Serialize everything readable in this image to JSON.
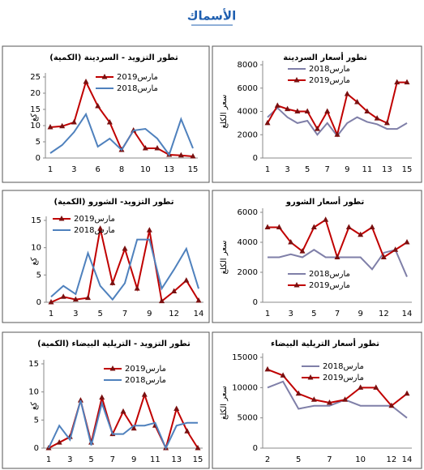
{
  "title": "الأسماك",
  "chart_data": [
    {
      "type": "line",
      "title": "تطور التزويد - السردينة (الكمية)",
      "ylabel": "كغ",
      "categories": [
        "1",
        null,
        "3",
        null,
        "6",
        null,
        "8",
        null,
        "10",
        null,
        "13",
        null,
        "15"
      ],
      "ylim": [
        0,
        25
      ],
      "yticks": [
        0,
        5,
        10,
        15,
        20,
        25
      ],
      "series": [
        {
          "name": "مارس2019",
          "color": "#c00000",
          "marker": "triangle",
          "values": [
            9.5,
            9.8,
            11,
            23.5,
            16,
            11,
            2.5,
            8.5,
            3,
            3,
            1,
            0.8,
            0.5
          ]
        },
        {
          "name": "مارس2018",
          "color": "#4f81bd",
          "values": [
            1.5,
            4,
            8,
            13.5,
            3.5,
            6,
            2.5,
            8.5,
            9,
            6,
            1,
            12,
            3
          ]
        }
      ]
    },
    {
      "type": "line",
      "title": "تطور أسعار السردينة",
      "ylabel": "سعر الكلغ",
      "categories": [
        "1",
        null,
        "3",
        null,
        "5",
        null,
        "7",
        null,
        "9",
        null,
        "11",
        null,
        "13",
        null,
        "15"
      ],
      "ylim": [
        0,
        8000
      ],
      "yticks": [
        0,
        2000,
        4000,
        6000,
        8000
      ],
      "series": [
        {
          "name": "مارس2018",
          "color": "#7f7fa8",
          "values": [
            3500,
            4300,
            3500,
            3000,
            3200,
            2000,
            3000,
            1900,
            3000,
            3500,
            3100,
            2900,
            2500,
            2500,
            3000
          ]
        },
        {
          "name": "مارس2019",
          "color": "#c00000",
          "marker": "triangle",
          "values": [
            3000,
            4500,
            4200,
            4000,
            4000,
            2500,
            4000,
            2000,
            5500,
            4800,
            4000,
            3400,
            3000,
            6500,
            6500
          ]
        }
      ]
    },
    {
      "type": "line",
      "title": "تطور التزويد- الشورو (الكمية)",
      "ylabel": "كغ",
      "categories": [
        "1",
        null,
        "3",
        null,
        "5",
        null,
        "7",
        null,
        "9",
        null,
        "12",
        null,
        "14"
      ],
      "ylim": [
        0,
        15
      ],
      "yticks": [
        0,
        5,
        10,
        15
      ],
      "series": [
        {
          "name": "مارس2019",
          "color": "#c00000",
          "marker": "triangle",
          "values": [
            0,
            1,
            0.5,
            0.8,
            13.5,
            3.5,
            9.8,
            2.5,
            13.2,
            0.2,
            2,
            4,
            0.3
          ]
        },
        {
          "name": "مارس2018",
          "color": "#4f81bd",
          "values": [
            1,
            3,
            1.5,
            9,
            3,
            0.5,
            3.5,
            11.5,
            11.5,
            2.5,
            6,
            9.8,
            2.5
          ]
        }
      ]
    },
    {
      "type": "line",
      "title": "تطور أسعار الشورو",
      "ylabel": "سعر الكلغ",
      "categories": [
        "1",
        null,
        "3",
        null,
        "5",
        null,
        "7",
        null,
        "9",
        null,
        "12",
        null,
        "14"
      ],
      "ylim": [
        0,
        6000
      ],
      "yticks": [
        0,
        2000,
        4000,
        6000
      ],
      "series": [
        {
          "name": "مارس2018",
          "color": "#7f7fa8",
          "values": [
            3000,
            3000,
            3200,
            3000,
            3500,
            3000,
            3000,
            3000,
            3000,
            2200,
            3300,
            3500,
            1700
          ]
        },
        {
          "name": "مارس2019",
          "color": "#c00000",
          "marker": "triangle",
          "values": [
            5000,
            5000,
            4000,
            3400,
            5000,
            5500,
            3000,
            5000,
            4500,
            5000,
            3000,
            3500,
            4000
          ]
        }
      ]
    },
    {
      "type": "line",
      "title": "تطور التزويد - التريلية البيضاء (الكمية)",
      "ylabel": "كغ",
      "categories": [
        "1",
        null,
        "3",
        null,
        "5",
        null,
        "7",
        null,
        "9",
        null,
        "11",
        null,
        "13",
        null,
        "15"
      ],
      "ylim": [
        0,
        15
      ],
      "yticks": [
        0,
        5,
        10,
        15
      ],
      "series": [
        {
          "name": "مارس2019",
          "color": "#c00000",
          "marker": "triangle",
          "values": [
            0,
            1,
            2,
            8.5,
            1,
            9,
            2.5,
            6.5,
            3.5,
            9.5,
            4,
            0,
            7,
            3,
            0
          ]
        },
        {
          "name": "مارس2018",
          "color": "#4f81bd",
          "values": [
            0,
            4,
            1.5,
            8.5,
            0.5,
            8,
            2.5,
            2.5,
            4,
            4,
            4.5,
            0,
            4,
            4.5,
            4.5
          ]
        }
      ]
    },
    {
      "type": "line",
      "title": "تطور أسعار التريلية البيضاء",
      "ylabel": "سعر الكلغ",
      "categories": [
        "2",
        null,
        "5",
        null,
        "7",
        null,
        "10",
        null,
        "12",
        "14"
      ],
      "ylim": [
        0,
        15000
      ],
      "yticks": [
        0,
        5000,
        10000,
        15000
      ],
      "series": [
        {
          "name": "مارس2018",
          "color": "#7f7fa8",
          "values": [
            10000,
            11000,
            6500,
            7000,
            7000,
            8000,
            7000,
            7000,
            7000,
            5000
          ]
        },
        {
          "name": "مارس2019",
          "color": "#c00000",
          "marker": "triangle",
          "values": [
            13000,
            12000,
            9000,
            8000,
            7500,
            8000,
            10000,
            10000,
            7000,
            9000
          ]
        }
      ]
    }
  ]
}
